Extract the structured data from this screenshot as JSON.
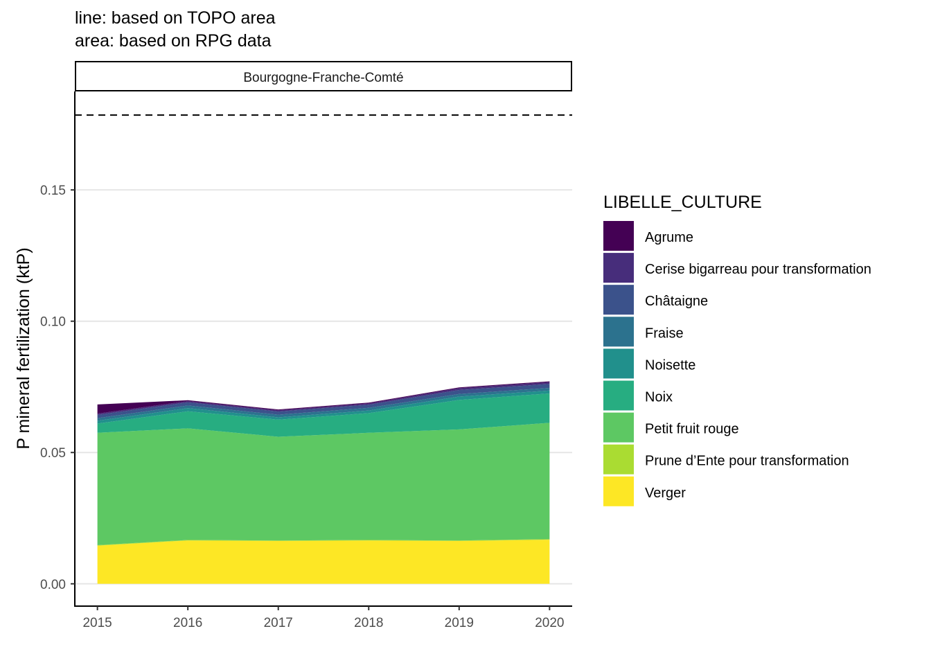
{
  "chart_data": {
    "type": "area",
    "stacked": true,
    "subtitle_lines": [
      "line: based on TOPO area",
      "area: based on RPG data"
    ],
    "facet_label": "Bourgogne-Franche-Comté",
    "xlabel": "",
    "ylabel": "P mineral fertilization (ktP)",
    "x": [
      2015,
      2016,
      2017,
      2018,
      2019,
      2020
    ],
    "x_ticks": [
      "2015",
      "2016",
      "2017",
      "2018",
      "2019",
      "2020"
    ],
    "y_ticks": [
      "0.00",
      "0.05",
      "0.10",
      "0.15"
    ],
    "y_tick_values": [
      0,
      0.05,
      0.1,
      0.15
    ],
    "ylim": [
      -0.0085,
      0.1875
    ],
    "xlim": [
      2014.75,
      2020.25
    ],
    "reference_line": {
      "style": "dashed",
      "value": 0.1785
    },
    "legend_title": "LIBELLE_CULTURE",
    "legend_position": "right",
    "grid": "horizontal-major",
    "series": [
      {
        "name": "Agrume",
        "color": "#440154",
        "values": [
          0.0035,
          0.0003,
          0.0003,
          0.0003,
          0.0003,
          0.0003
        ]
      },
      {
        "name": "Cerise bigarreau pour transformation",
        "color": "#472D7B",
        "values": [
          0.0005,
          0.0005,
          0.0005,
          0.0005,
          0.0007,
          0.0007
        ]
      },
      {
        "name": "Châtaigne",
        "color": "#3B528B",
        "values": [
          0.0012,
          0.0012,
          0.0012,
          0.0012,
          0.0015,
          0.0015
        ]
      },
      {
        "name": "Fraise",
        "color": "#2C728E",
        "values": [
          0.001,
          0.001,
          0.001,
          0.001,
          0.001,
          0.001
        ]
      },
      {
        "name": "Noisette",
        "color": "#21908C",
        "values": [
          0.0011,
          0.0012,
          0.0009,
          0.001,
          0.0013,
          0.0011
        ]
      },
      {
        "name": "Noix",
        "color": "#27AD81",
        "values": [
          0.0035,
          0.0065,
          0.0065,
          0.0075,
          0.0112,
          0.0112
        ]
      },
      {
        "name": "Petit fruit rouge",
        "color": "#5DC863",
        "values": [
          0.0428,
          0.0425,
          0.0395,
          0.0408,
          0.0423,
          0.0443
        ]
      },
      {
        "name": "Prune d’Ente pour transformation",
        "color": "#AADC32",
        "values": [
          0.0002,
          0.0002,
          0.0002,
          0.0002,
          0.0002,
          0.0002
        ]
      },
      {
        "name": "Verger",
        "color": "#FDE725",
        "values": [
          0.0145,
          0.0165,
          0.0163,
          0.0165,
          0.0163,
          0.0168
        ]
      }
    ]
  }
}
